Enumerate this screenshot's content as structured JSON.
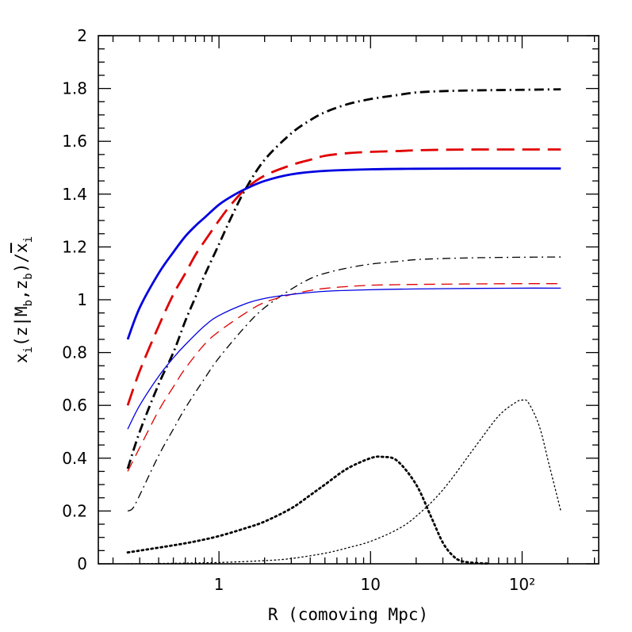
{
  "chart_data": {
    "type": "line",
    "xlabel": "R (comoving Mpc)",
    "ylabel": "x_i(z|M_b,z_b)/x̄_i",
    "x_scale": "log",
    "xlim": [
      0.16,
      320
    ],
    "ylim": [
      0,
      2
    ],
    "x_ticks": [
      {
        "value": 1,
        "label": "1"
      },
      {
        "value": 10,
        "label": "10"
      },
      {
        "value": 100,
        "label": "10²"
      }
    ],
    "y_ticks": [
      {
        "value": 0,
        "label": "0"
      },
      {
        "value": 0.2,
        "label": "0.2"
      },
      {
        "value": 0.4,
        "label": "0.4"
      },
      {
        "value": 0.6,
        "label": "0.6"
      },
      {
        "value": 0.8,
        "label": "0.8"
      },
      {
        "value": 1,
        "label": "1"
      },
      {
        "value": 1.2,
        "label": "1.2"
      },
      {
        "value": 1.4,
        "label": "1.4"
      },
      {
        "value": 1.6,
        "label": "1.6"
      },
      {
        "value": 1.8,
        "label": "1.8"
      },
      {
        "value": 2,
        "label": "2"
      }
    ],
    "grid": false,
    "series": [
      {
        "color": "#000000",
        "style": "dashdot",
        "weight": "thick",
        "x": [
          0.25,
          0.3,
          0.4,
          0.5,
          0.6,
          0.7,
          0.8,
          1,
          1.2,
          1.5,
          2,
          3,
          4,
          5,
          7,
          10,
          15,
          20,
          30,
          50,
          100,
          180
        ],
        "y": [
          0.36,
          0.5,
          0.68,
          0.8,
          0.92,
          1.01,
          1.09,
          1.21,
          1.31,
          1.42,
          1.53,
          1.63,
          1.68,
          1.71,
          1.74,
          1.76,
          1.775,
          1.785,
          1.79,
          1.793,
          1.795,
          1.797
        ]
      },
      {
        "color": "#e00000",
        "style": "dashed",
        "weight": "thick",
        "x": [
          0.25,
          0.3,
          0.4,
          0.5,
          0.6,
          0.7,
          0.8,
          1,
          1.2,
          1.5,
          2,
          3,
          4,
          5,
          7,
          10,
          15,
          20,
          30,
          50,
          100,
          180
        ],
        "y": [
          0.6,
          0.73,
          0.9,
          1.02,
          1.1,
          1.17,
          1.22,
          1.3,
          1.36,
          1.42,
          1.47,
          1.51,
          1.53,
          1.545,
          1.555,
          1.56,
          1.563,
          1.566,
          1.568,
          1.569,
          1.569,
          1.569
        ]
      },
      {
        "color": "#0000e0",
        "style": "solid",
        "weight": "thick",
        "x": [
          0.25,
          0.3,
          0.4,
          0.5,
          0.6,
          0.7,
          0.8,
          1,
          1.2,
          1.5,
          2,
          3,
          5,
          10,
          20,
          50,
          100,
          180
        ],
        "y": [
          0.85,
          0.97,
          1.1,
          1.18,
          1.24,
          1.28,
          1.31,
          1.36,
          1.39,
          1.42,
          1.45,
          1.475,
          1.488,
          1.494,
          1.496,
          1.497,
          1.497,
          1.497
        ]
      },
      {
        "color": "#000000",
        "style": "dashdot",
        "weight": "thin",
        "x": [
          0.25,
          0.27,
          0.3,
          0.4,
          0.5,
          0.6,
          0.8,
          1,
          1.5,
          2,
          3,
          4,
          5,
          7,
          10,
          15,
          20,
          30,
          50,
          100,
          180
        ],
        "y": [
          0.2,
          0.21,
          0.26,
          0.41,
          0.51,
          0.59,
          0.7,
          0.78,
          0.9,
          0.97,
          1.04,
          1.08,
          1.1,
          1.12,
          1.135,
          1.145,
          1.152,
          1.156,
          1.159,
          1.161,
          1.162
        ]
      },
      {
        "color": "#e00000",
        "style": "dashed",
        "weight": "thin",
        "x": [
          0.25,
          0.3,
          0.4,
          0.5,
          0.6,
          0.8,
          1,
          1.5,
          2,
          3,
          4,
          5,
          7,
          10,
          15,
          20,
          30,
          50,
          100,
          180
        ],
        "y": [
          0.35,
          0.44,
          0.58,
          0.67,
          0.74,
          0.83,
          0.88,
          0.95,
          0.99,
          1.02,
          1.035,
          1.043,
          1.05,
          1.055,
          1.057,
          1.058,
          1.059,
          1.06,
          1.061,
          1.061
        ]
      },
      {
        "color": "#0000e0",
        "style": "solid",
        "weight": "thin",
        "x": [
          0.25,
          0.3,
          0.4,
          0.5,
          0.6,
          0.8,
          1,
          1.5,
          2,
          3,
          5,
          10,
          20,
          50,
          100,
          180
        ],
        "y": [
          0.51,
          0.6,
          0.71,
          0.78,
          0.83,
          0.9,
          0.94,
          0.985,
          1.005,
          1.02,
          1.032,
          1.038,
          1.041,
          1.043,
          1.044,
          1.044
        ]
      },
      {
        "color": "#000000",
        "style": "dotted",
        "weight": "thick",
        "x": [
          0.25,
          0.3,
          0.5,
          0.7,
          1,
          1.5,
          2,
          3,
          4,
          5,
          7,
          10,
          12,
          15,
          20,
          25,
          30,
          35,
          40,
          50,
          60
        ],
        "y": [
          0.043,
          0.05,
          0.07,
          0.085,
          0.105,
          0.135,
          0.16,
          0.21,
          0.26,
          0.3,
          0.36,
          0.4,
          0.405,
          0.39,
          0.3,
          0.18,
          0.08,
          0.03,
          0.01,
          0.003,
          0.001
        ]
      },
      {
        "color": "#000000",
        "style": "dotted",
        "weight": "thin",
        "x": [
          0.25,
          0.5,
          1,
          2,
          3,
          5,
          7,
          10,
          15,
          20,
          30,
          50,
          70,
          90,
          100,
          110,
          130,
          150,
          180
        ],
        "y": [
          0.0,
          0.002,
          0.005,
          0.012,
          0.02,
          0.04,
          0.06,
          0.085,
          0.13,
          0.18,
          0.28,
          0.45,
          0.56,
          0.61,
          0.62,
          0.61,
          0.52,
          0.38,
          0.2
        ]
      }
    ]
  }
}
